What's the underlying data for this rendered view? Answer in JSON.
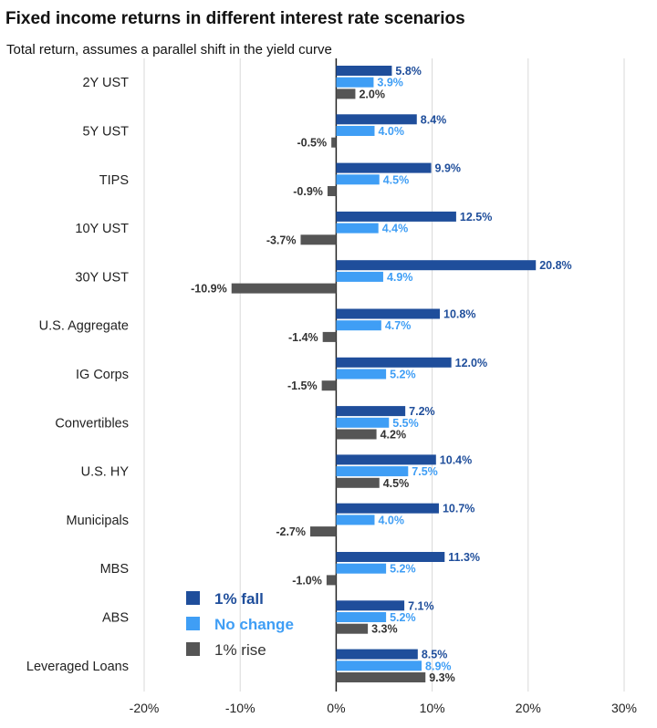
{
  "title": "Fixed income returns in different interest rate scenarios",
  "subtitle": "Total return, assumes a parallel shift in the yield curve",
  "colors": {
    "fall": "#1f4e9b",
    "nochange": "#3f9ef5",
    "rise": "#555555",
    "grid": "#d9d9d9",
    "axis": "#222222"
  },
  "chart_data": {
    "type": "bar",
    "orientation": "horizontal",
    "categories": [
      "2Y UST",
      "5Y UST",
      "TIPS",
      "10Y UST",
      "30Y UST",
      "U.S. Aggregate",
      "IG Corps",
      "Convertibles",
      "U.S. HY",
      "Municipals",
      "MBS",
      "ABS",
      "Leveraged Loans"
    ],
    "series": [
      {
        "name": "1% fall",
        "values": [
          5.8,
          8.4,
          9.9,
          12.5,
          20.8,
          10.8,
          12.0,
          7.2,
          10.4,
          10.7,
          11.3,
          7.1,
          8.5
        ],
        "labels": [
          "5.8%",
          "8.4%",
          "9.9%",
          "12.5%",
          "20.8%",
          "10.8%",
          "12.0%",
          "7.2%",
          "10.4%",
          "10.7%",
          "11.3%",
          "7.1%",
          "8.5%"
        ]
      },
      {
        "name": "No change",
        "values": [
          3.9,
          4.0,
          4.5,
          4.4,
          4.9,
          4.7,
          5.2,
          5.5,
          7.5,
          4.0,
          5.2,
          5.2,
          8.9
        ],
        "labels": [
          "3.9%",
          "4.0%",
          "4.5%",
          "4.4%",
          "4.9%",
          "4.7%",
          "5.2%",
          "5.5%",
          "7.5%",
          "4.0%",
          "5.2%",
          "5.2%",
          "8.9%"
        ]
      },
      {
        "name": "1% rise",
        "values": [
          2.0,
          -0.5,
          -0.9,
          -3.7,
          -10.9,
          -1.4,
          -1.5,
          4.2,
          4.5,
          -2.7,
          -1.0,
          3.3,
          9.3
        ],
        "labels": [
          "2.0%",
          "-0.5%",
          "-0.9%",
          "-3.7%",
          "-10.9%",
          "-1.4%",
          "-1.5%",
          "4.2%",
          "4.5%",
          "-2.7%",
          "-1.0%",
          "3.3%",
          "9.3%"
        ]
      }
    ],
    "xlim": [
      -20,
      30
    ],
    "xticks": [
      -20,
      -10,
      0,
      10,
      20,
      30
    ],
    "xtick_labels": [
      "-20%",
      "-10%",
      "0%",
      "10%",
      "20%",
      "30%"
    ],
    "grid": "vertical",
    "legend_position": "bottom-left"
  }
}
